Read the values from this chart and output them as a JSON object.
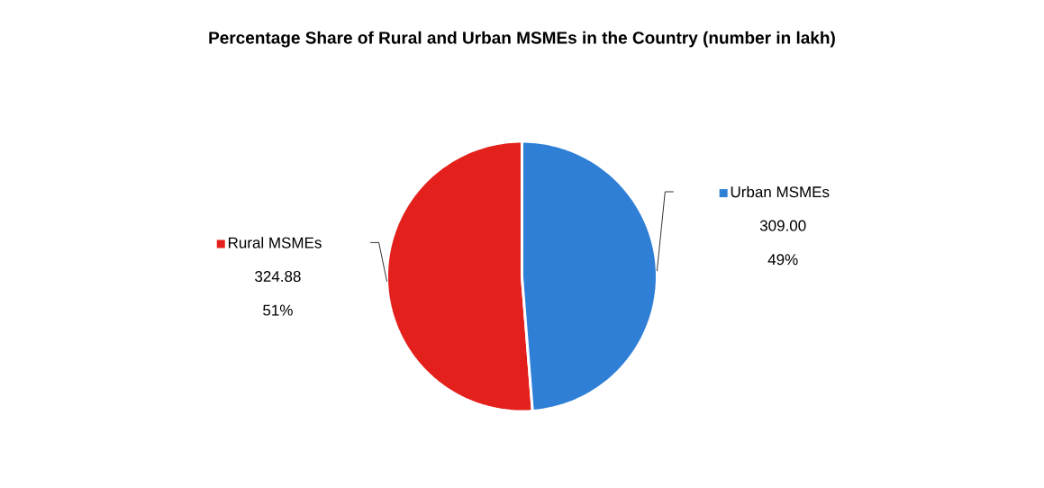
{
  "chart_data": {
    "type": "pie",
    "title": "Percentage Share of Rural and Urban MSMEs in the Country (number in lakh)",
    "categories": [
      "Rural MSMEs",
      "Urban MSMEs"
    ],
    "values": [
      324.88,
      309.0
    ],
    "colors": [
      "#e3201b",
      "#2f7fd6"
    ],
    "value_labels": [
      "324.88",
      "309.00"
    ],
    "annotations": [
      "51%",
      "49%"
    ],
    "legend": "left"
  }
}
